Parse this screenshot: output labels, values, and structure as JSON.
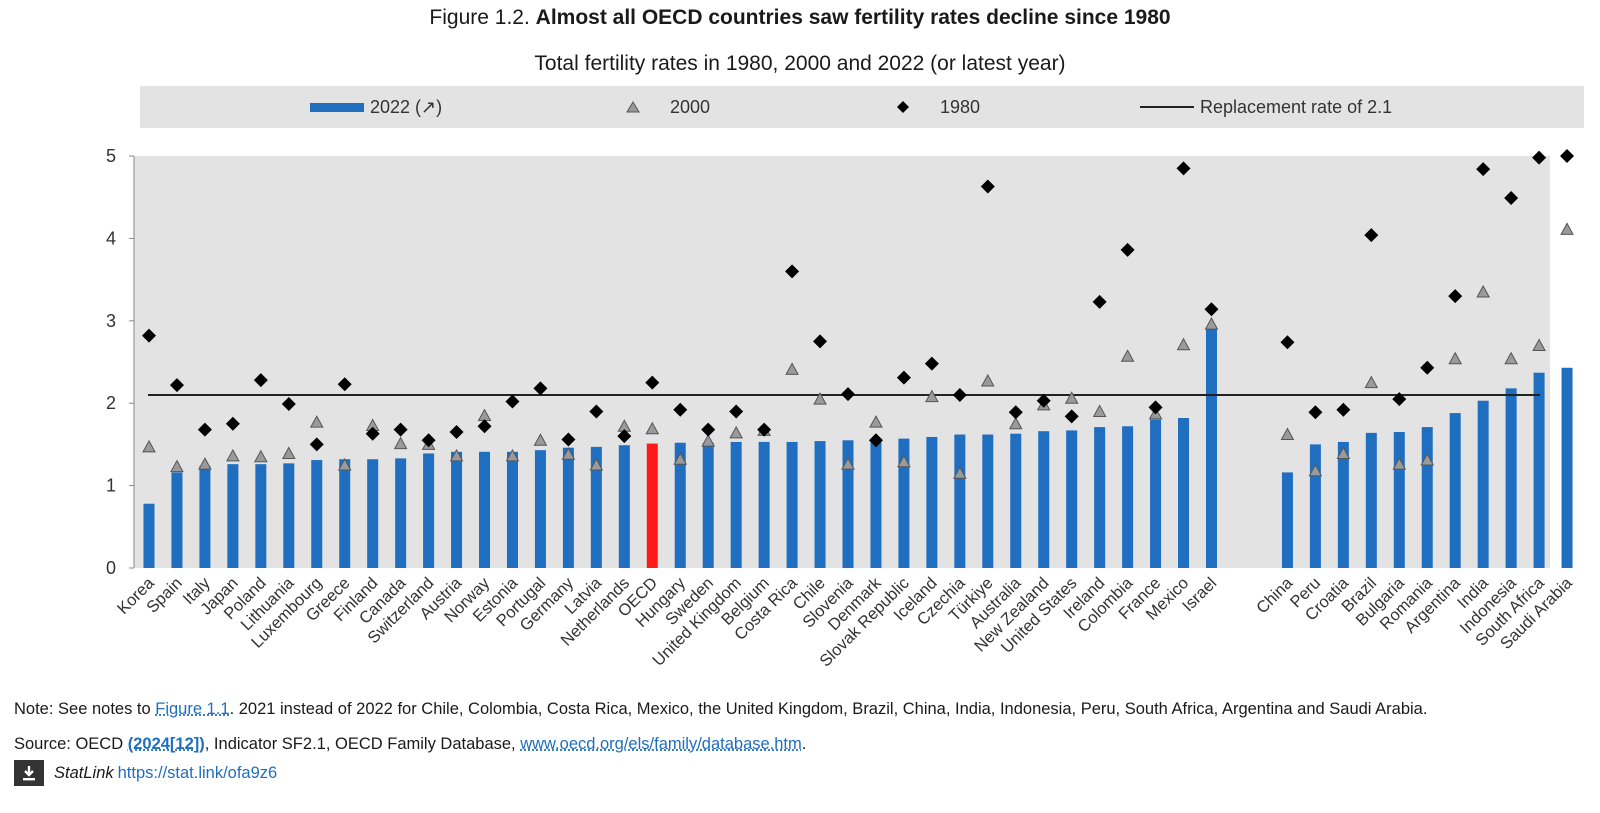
{
  "figure": {
    "number": "Figure 1.2.",
    "title": "Almost all OECD countries saw fertility rates decline since 1980",
    "subtitle": "Total fertility rates in 1980, 2000 and 2022 (or latest year)"
  },
  "legend": {
    "bar_label": "2022 (↗)",
    "triangle_label": "2000",
    "diamond_label": "1980",
    "line_label": "Replacement rate of 2.1"
  },
  "colors": {
    "bar": "#1f6ebf",
    "highlight": "#ff1a1a",
    "background": "#e3e3e3",
    "triangle": "#9a9a9a",
    "diamond": "#000000",
    "line": "#222222"
  },
  "chart_data": {
    "type": "bar",
    "ylim": [
      0,
      5
    ],
    "yticks": [
      0,
      1,
      2,
      3,
      4,
      5
    ],
    "reference_line": 2.1,
    "highlight_category": "OECD",
    "gap_after": "Israel",
    "categories": [
      "Korea",
      "Spain",
      "Italy",
      "Japan",
      "Poland",
      "Lithuania",
      "Luxembourg",
      "Greece",
      "Finland",
      "Canada",
      "Switzerland",
      "Austria",
      "Norway",
      "Estonia",
      "Portugal",
      "Germany",
      "Latvia",
      "Netherlands",
      "OECD",
      "Hungary",
      "Sweden",
      "United Kingdom",
      "Belgium",
      "Costa Rica",
      "Chile",
      "Slovenia",
      "Denmark",
      "Slovak Republic",
      "Iceland",
      "Czechia",
      "Türkiye",
      "Australia",
      "New Zealand",
      "United States",
      "Ireland",
      "Colombia",
      "France",
      "Mexico",
      "Israel",
      "China",
      "Peru",
      "Croatia",
      "Brazil",
      "Bulgaria",
      "Romania",
      "Argentina",
      "India",
      "Indonesia",
      "South Africa",
      "Saudi Arabia"
    ],
    "series": [
      {
        "name": "2022 (↗)",
        "kind": "bar",
        "values": [
          0.78,
          1.16,
          1.24,
          1.26,
          1.26,
          1.27,
          1.31,
          1.32,
          1.32,
          1.33,
          1.39,
          1.41,
          1.41,
          1.41,
          1.43,
          1.46,
          1.47,
          1.49,
          1.51,
          1.52,
          1.52,
          1.53,
          1.53,
          1.53,
          1.54,
          1.55,
          1.55,
          1.57,
          1.59,
          1.62,
          1.62,
          1.63,
          1.66,
          1.67,
          1.71,
          1.72,
          1.8,
          1.82,
          2.9,
          1.16,
          1.5,
          1.53,
          1.64,
          1.65,
          1.71,
          1.88,
          2.03,
          2.18,
          2.37,
          2.43
        ]
      },
      {
        "name": "2000",
        "kind": "triangle",
        "values": [
          1.47,
          1.23,
          1.26,
          1.36,
          1.35,
          1.39,
          1.77,
          1.25,
          1.73,
          1.51,
          1.5,
          1.36,
          1.85,
          1.36,
          1.55,
          1.38,
          1.25,
          1.72,
          1.69,
          1.32,
          1.54,
          1.64,
          1.67,
          2.41,
          2.05,
          1.26,
          1.77,
          1.29,
          2.08,
          1.15,
          2.27,
          1.75,
          1.98,
          2.06,
          1.9,
          2.57,
          1.87,
          2.71,
          2.96,
          1.62,
          1.18,
          1.39,
          2.25,
          1.26,
          1.31,
          2.54,
          3.35,
          2.54,
          2.7,
          4.11
        ]
      },
      {
        "name": "1980",
        "kind": "diamond",
        "values": [
          2.82,
          2.22,
          1.68,
          1.75,
          2.28,
          1.99,
          1.5,
          2.23,
          1.63,
          1.68,
          1.55,
          1.65,
          1.72,
          2.02,
          2.18,
          1.56,
          1.9,
          1.6,
          2.25,
          1.92,
          1.68,
          1.9,
          1.68,
          3.6,
          2.75,
          2.11,
          1.55,
          2.31,
          2.48,
          2.1,
          4.63,
          1.89,
          2.03,
          1.84,
          3.23,
          3.86,
          1.95,
          4.85,
          3.14,
          2.74,
          1.89,
          1.92,
          4.04,
          2.05,
          2.43,
          3.3,
          4.84,
          4.49,
          4.98,
          5.0
        ]
      }
    ]
  },
  "note": {
    "prefix": "Note: See notes to ",
    "link": "Figure 1.1",
    "rest": ". 2021 instead of 2022 for Chile, Colombia, Costa Rica, Mexico, the United Kingdom, Brazil, China, India, Indonesia, Peru, South Africa, Argentina and Saudi Arabia."
  },
  "source": {
    "prefix": "Source: OECD ",
    "ref": "(2024[12])",
    "middle": ", Indicator SF2.1, OECD Family Database, ",
    "url": "www.oecd.org/els/family/database.htm",
    "suffix": "."
  },
  "statlink": {
    "label": "StatLink",
    "url": "https://stat.link/ofa9z6",
    "icon": "download-icon"
  }
}
